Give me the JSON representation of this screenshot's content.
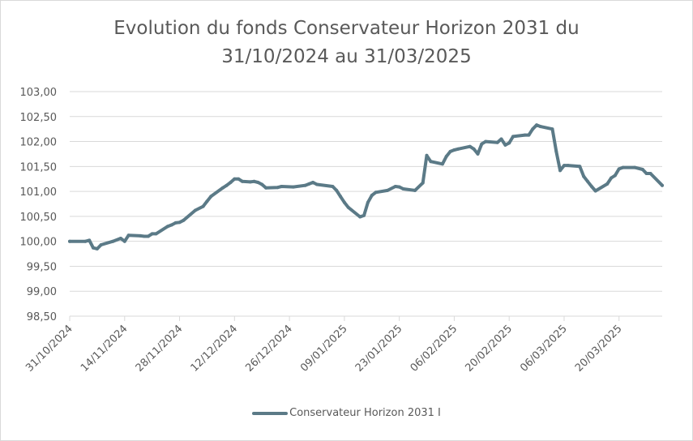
{
  "chart_data": {
    "type": "line",
    "title_lines": [
      "Evolution du fonds Conservateur Horizon 2031 du",
      "31/10/2024 au 31/03/2025"
    ],
    "xlabel": "",
    "ylabel": "",
    "ylim": [
      98.5,
      103.0
    ],
    "y_ticks": [
      98.5,
      99.0,
      99.5,
      100.0,
      100.5,
      101.0,
      101.5,
      102.0,
      102.5,
      103.0
    ],
    "y_tick_labels": [
      "98,50",
      "99,00",
      "99,50",
      "100,00",
      "100,50",
      "101,00",
      "101,50",
      "102,00",
      "102,50",
      "103,00"
    ],
    "x_range": [
      "2024-10-31",
      "2025-03-31"
    ],
    "x_ticks": [
      "2024-10-31",
      "2024-11-14",
      "2024-11-28",
      "2024-12-12",
      "2024-12-26",
      "2025-01-09",
      "2025-01-23",
      "2025-02-06",
      "2025-02-20",
      "2025-03-06",
      "2025-03-20"
    ],
    "x_tick_labels": [
      "31/10/2024",
      "14/11/2024",
      "28/11/2024",
      "12/12/2024",
      "26/12/2024",
      "09/01/2025",
      "23/01/2025",
      "06/02/2025",
      "20/02/2025",
      "06/03/2025",
      "20/03/2025"
    ],
    "grid": "horizontal",
    "legend_position": "bottom",
    "series": [
      {
        "name": "Conservateur Horizon 2031 I",
        "color": "#5b7a87",
        "points": [
          [
            "2024-10-31",
            100.0
          ],
          [
            "2024-11-04",
            100.0
          ],
          [
            "2024-11-05",
            100.02
          ],
          [
            "2024-11-06",
            99.87
          ],
          [
            "2024-11-07",
            99.85
          ],
          [
            "2024-11-08",
            99.93
          ],
          [
            "2024-11-11",
            100.0
          ],
          [
            "2024-11-13",
            100.06
          ],
          [
            "2024-11-14",
            100.0
          ],
          [
            "2024-11-15",
            100.12
          ],
          [
            "2024-11-18",
            100.11
          ],
          [
            "2024-11-19",
            100.1
          ],
          [
            "2024-11-20",
            100.1
          ],
          [
            "2024-11-21",
            100.15
          ],
          [
            "2024-11-22",
            100.15
          ],
          [
            "2024-11-25",
            100.3
          ],
          [
            "2024-11-26",
            100.33
          ],
          [
            "2024-11-27",
            100.37
          ],
          [
            "2024-11-28",
            100.38
          ],
          [
            "2024-11-29",
            100.42
          ],
          [
            "2024-12-02",
            100.62
          ],
          [
            "2024-12-04",
            100.7
          ],
          [
            "2024-12-05",
            100.8
          ],
          [
            "2024-12-06",
            100.9
          ],
          [
            "2024-12-09",
            101.07
          ],
          [
            "2024-12-10",
            101.12
          ],
          [
            "2024-12-11",
            101.18
          ],
          [
            "2024-12-12",
            101.25
          ],
          [
            "2024-12-13",
            101.25
          ],
          [
            "2024-12-14",
            101.2
          ],
          [
            "2024-12-16",
            101.19
          ],
          [
            "2024-12-17",
            101.2
          ],
          [
            "2024-12-18",
            101.18
          ],
          [
            "2024-12-19",
            101.14
          ],
          [
            "2024-12-20",
            101.07
          ],
          [
            "2024-12-23",
            101.08
          ],
          [
            "2024-12-24",
            101.1
          ],
          [
            "2024-12-27",
            101.09
          ],
          [
            "2024-12-30",
            101.12
          ],
          [
            "2024-12-31",
            101.15
          ],
          [
            "2025-01-01",
            101.18
          ],
          [
            "2025-01-02",
            101.14
          ],
          [
            "2025-01-06",
            101.1
          ],
          [
            "2025-01-07",
            101.02
          ],
          [
            "2025-01-08",
            100.9
          ],
          [
            "2025-01-09",
            100.78
          ],
          [
            "2025-01-10",
            100.68
          ],
          [
            "2025-01-13",
            100.49
          ],
          [
            "2025-01-14",
            100.52
          ],
          [
            "2025-01-15",
            100.78
          ],
          [
            "2025-01-16",
            100.92
          ],
          [
            "2025-01-17",
            100.98
          ],
          [
            "2025-01-20",
            101.02
          ],
          [
            "2025-01-22",
            101.1
          ],
          [
            "2025-01-23",
            101.09
          ],
          [
            "2025-01-24",
            101.05
          ],
          [
            "2025-01-27",
            101.02
          ],
          [
            "2025-01-29",
            101.17
          ],
          [
            "2025-01-30",
            101.72
          ],
          [
            "2025-01-31",
            101.6
          ],
          [
            "2025-02-03",
            101.55
          ],
          [
            "2025-02-04",
            101.7
          ],
          [
            "2025-02-05",
            101.8
          ],
          [
            "2025-02-06",
            101.83
          ],
          [
            "2025-02-07",
            101.85
          ],
          [
            "2025-02-10",
            101.9
          ],
          [
            "2025-02-11",
            101.85
          ],
          [
            "2025-02-12",
            101.75
          ],
          [
            "2025-02-13",
            101.95
          ],
          [
            "2025-02-14",
            102.0
          ],
          [
            "2025-02-17",
            101.98
          ],
          [
            "2025-02-18",
            102.05
          ],
          [
            "2025-02-19",
            101.93
          ],
          [
            "2025-02-20",
            101.97
          ],
          [
            "2025-02-21",
            102.1
          ],
          [
            "2025-02-24",
            102.13
          ],
          [
            "2025-02-25",
            102.13
          ],
          [
            "2025-02-26",
            102.25
          ],
          [
            "2025-02-27",
            102.33
          ],
          [
            "2025-02-28",
            102.3
          ],
          [
            "2025-03-03",
            102.25
          ],
          [
            "2025-03-04",
            101.8
          ],
          [
            "2025-03-05",
            101.42
          ],
          [
            "2025-03-06",
            101.52
          ],
          [
            "2025-03-07",
            101.52
          ],
          [
            "2025-03-10",
            101.5
          ],
          [
            "2025-03-11",
            101.3
          ],
          [
            "2025-03-12",
            101.2
          ],
          [
            "2025-03-13",
            101.1
          ],
          [
            "2025-03-14",
            101.01
          ],
          [
            "2025-03-17",
            101.15
          ],
          [
            "2025-03-18",
            101.27
          ],
          [
            "2025-03-19",
            101.32
          ],
          [
            "2025-03-20",
            101.45
          ],
          [
            "2025-03-21",
            101.48
          ],
          [
            "2025-03-24",
            101.48
          ],
          [
            "2025-03-26",
            101.44
          ],
          [
            "2025-03-27",
            101.36
          ],
          [
            "2025-03-28",
            101.36
          ],
          [
            "2025-03-31",
            101.12
          ]
        ]
      }
    ]
  }
}
